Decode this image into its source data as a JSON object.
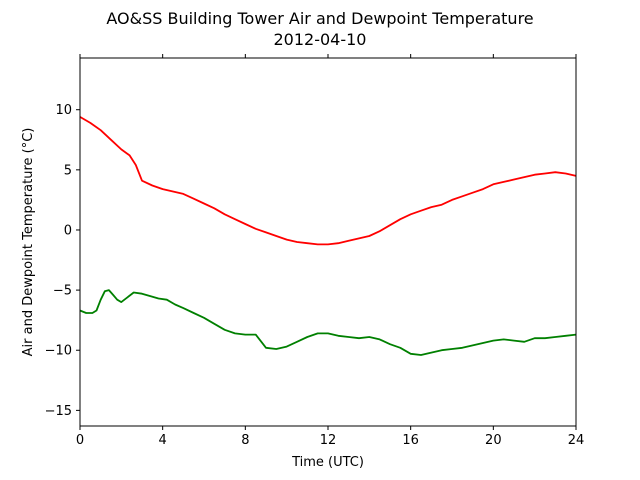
{
  "chart_data": {
    "type": "line",
    "title": "AO&SS Building Tower Air and Dewpoint Temperature",
    "subtitle": "2012-04-10",
    "xlabel": "Time (UTC)",
    "ylabel": "Air and Dewpoint Temperature (°C)",
    "xlim": [
      0,
      24
    ],
    "ylim": [
      -16.3,
      14.3
    ],
    "xticks": [
      0,
      4,
      8,
      12,
      16,
      20,
      24
    ],
    "yticks": [
      -15,
      -10,
      -5,
      0,
      5,
      10
    ],
    "grid": false,
    "series": [
      {
        "color": "#ff0000",
        "x": [
          0,
          0.5,
          1,
          1.5,
          2,
          2.4,
          2.7,
          3,
          3.5,
          4,
          4.5,
          5,
          5.5,
          6,
          6.5,
          7,
          7.5,
          8,
          8.5,
          9,
          9.5,
          10,
          10.5,
          11,
          11.5,
          12,
          12.5,
          13,
          13.5,
          14,
          14.5,
          15,
          15.5,
          16,
          16.5,
          17,
          17.5,
          18,
          18.5,
          19,
          19.5,
          20,
          20.5,
          21,
          21.5,
          22,
          22.5,
          23,
          23.5,
          24
        ],
        "y": [
          9.4,
          8.9,
          8.3,
          7.5,
          6.7,
          6.2,
          5.4,
          4.1,
          3.7,
          3.4,
          3.2,
          3.0,
          2.6,
          2.2,
          1.8,
          1.3,
          0.9,
          0.5,
          0.1,
          -0.2,
          -0.5,
          -0.8,
          -1.0,
          -1.1,
          -1.2,
          -1.2,
          -1.1,
          -0.9,
          -0.7,
          -0.5,
          -0.1,
          0.4,
          0.9,
          1.3,
          1.6,
          1.9,
          2.1,
          2.5,
          2.8,
          3.1,
          3.4,
          3.8,
          4.0,
          4.2,
          4.4,
          4.6,
          4.7,
          4.8,
          4.7,
          4.5
        ]
      },
      {
        "color": "#008000",
        "x": [
          0,
          0.3,
          0.6,
          0.8,
          1,
          1.2,
          1.4,
          1.6,
          1.8,
          2,
          2.3,
          2.6,
          3,
          3.4,
          3.8,
          4.2,
          4.6,
          5,
          5.5,
          6,
          6.5,
          7,
          7.5,
          8,
          8.5,
          9,
          9.5,
          10,
          10.5,
          11,
          11.5,
          12,
          12.5,
          13,
          13.5,
          14,
          14.5,
          15,
          15.5,
          16,
          16.5,
          17,
          17.5,
          18,
          18.5,
          19,
          19.5,
          20,
          20.5,
          21,
          21.5,
          22,
          22.5,
          23,
          23.5,
          24
        ],
        "y": [
          -6.7,
          -6.9,
          -6.9,
          -6.7,
          -5.8,
          -5.1,
          -5.0,
          -5.4,
          -5.8,
          -6.0,
          -5.6,
          -5.2,
          -5.3,
          -5.5,
          -5.7,
          -5.8,
          -6.2,
          -6.5,
          -6.9,
          -7.3,
          -7.8,
          -8.3,
          -8.6,
          -8.7,
          -8.7,
          -9.8,
          -9.9,
          -9.7,
          -9.3,
          -8.9,
          -8.6,
          -8.6,
          -8.8,
          -8.9,
          -9.0,
          -8.9,
          -9.1,
          -9.5,
          -9.8,
          -10.3,
          -10.4,
          -10.2,
          -10.0,
          -9.9,
          -9.8,
          -9.6,
          -9.4,
          -9.2,
          -9.1,
          -9.2,
          -9.3,
          -9.0,
          -9.0,
          -8.9,
          -8.8,
          -8.7
        ]
      }
    ]
  }
}
